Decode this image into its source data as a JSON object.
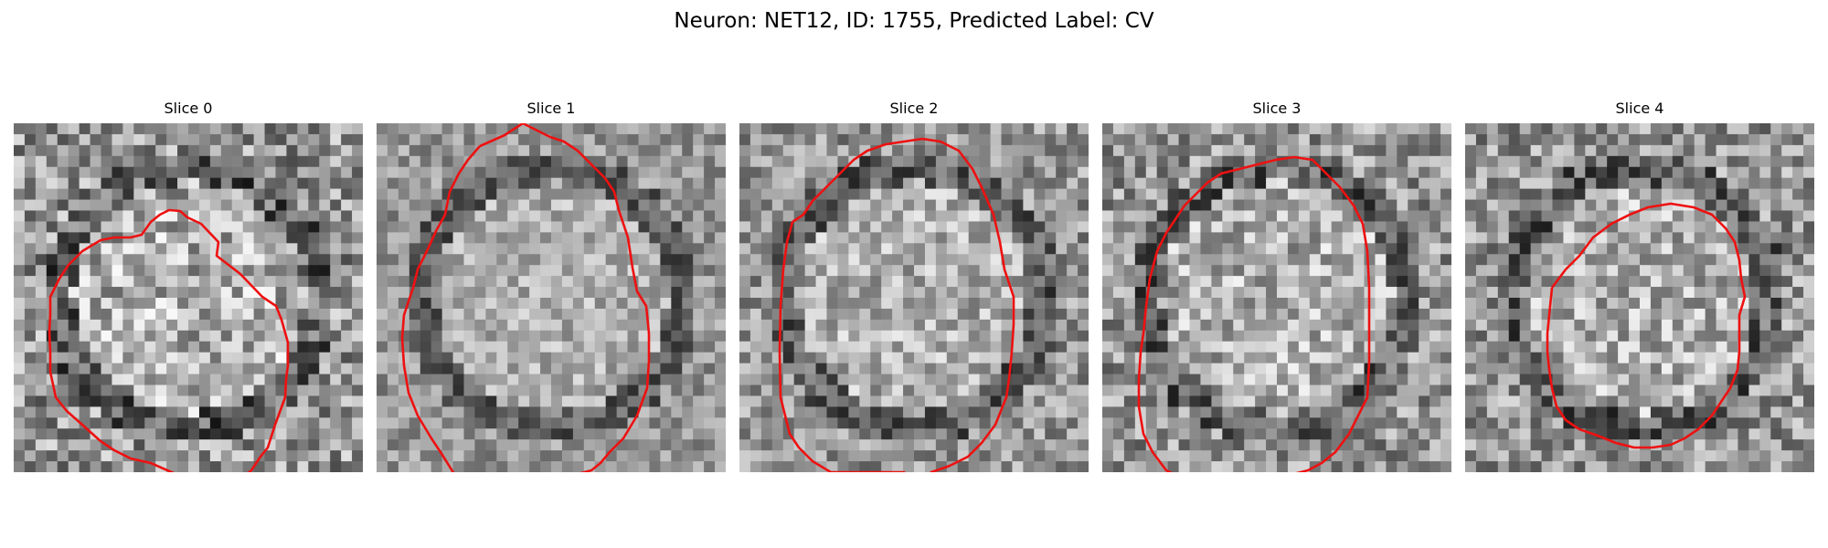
{
  "figure": {
    "title": "Neuron: NET12, ID: 1755, Predicted Label: CV"
  },
  "panels": [
    {
      "title": "Slice 0",
      "seed": 11,
      "bright": "center",
      "contrast": 1.0
    },
    {
      "title": "Slice 1",
      "seed": 23,
      "bright": "center",
      "contrast": 0.65
    },
    {
      "title": "Slice 2",
      "seed": 37,
      "bright": "center",
      "contrast": 0.8
    },
    {
      "title": "Slice 3",
      "seed": 51,
      "bright": "center",
      "contrast": 0.9
    },
    {
      "title": "Slice 4",
      "seed": 67,
      "bright": "center",
      "contrast": 0.9
    }
  ],
  "style": {
    "colormap": "gray",
    "contour_color": "#ee1111",
    "grid_size": 32
  }
}
